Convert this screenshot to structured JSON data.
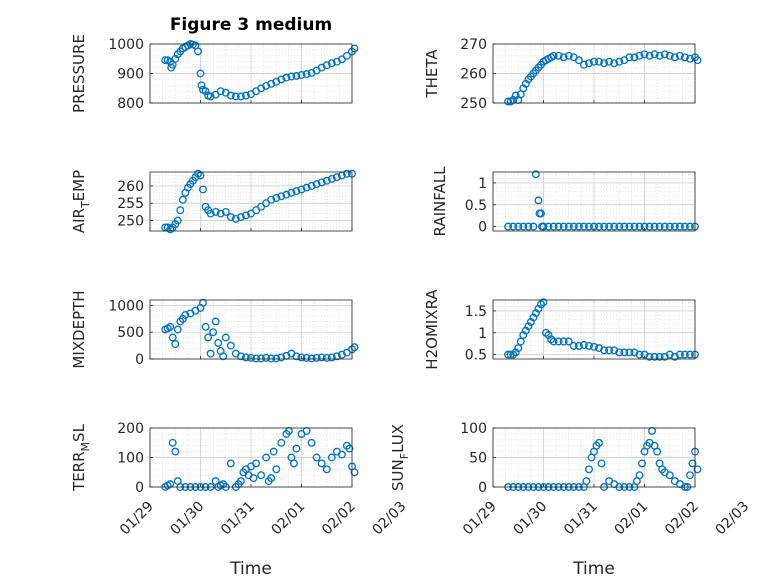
{
  "figure": {
    "title": "Figure 3 medium",
    "marker_color": "#0072BD",
    "x_tick_labels": [
      "01/29",
      "01/30",
      "01/31",
      "02/01",
      "02/02",
      "02/03"
    ],
    "x_label": "Time"
  },
  "chart_data": [
    {
      "type": "scatter",
      "ylabel": "PRESSURE",
      "ylim": [
        800,
        1000
      ],
      "yticks": [
        800,
        900,
        1000
      ],
      "xlim": [
        0,
        4
      ],
      "grid": true,
      "x": [
        0.3,
        0.35,
        0.4,
        0.42,
        0.45,
        0.5,
        0.55,
        0.6,
        0.65,
        0.7,
        0.75,
        0.8,
        0.85,
        0.9,
        0.95,
        1.0,
        1.02,
        1.05,
        1.1,
        1.15,
        1.2,
        1.3,
        1.4,
        1.5,
        1.6,
        1.7,
        1.8,
        1.9,
        2.0,
        2.1,
        2.2,
        2.3,
        2.4,
        2.5,
        2.6,
        2.7,
        2.8,
        2.9,
        3.0,
        3.1,
        3.2,
        3.3,
        3.4,
        3.5,
        3.6,
        3.7,
        3.8,
        3.9,
        4.0,
        4.05,
        4.1
      ],
      "y": [
        945,
        945,
        940,
        920,
        930,
        950,
        965,
        975,
        985,
        990,
        995,
        1000,
        998,
        995,
        975,
        900,
        860,
        845,
        840,
        825,
        822,
        828,
        840,
        835,
        825,
        822,
        822,
        825,
        830,
        840,
        850,
        858,
        865,
        872,
        880,
        886,
        890,
        892,
        895,
        898,
        902,
        910,
        920,
        928,
        935,
        940,
        948,
        960,
        975,
        985,
        1000
      ]
    },
    {
      "type": "scatter",
      "ylabel": "THETA",
      "ylim": [
        250,
        270
      ],
      "yticks": [
        250,
        260,
        270
      ],
      "xlim": [
        0,
        4
      ],
      "grid": true,
      "x": [
        0.3,
        0.35,
        0.4,
        0.45,
        0.5,
        0.55,
        0.6,
        0.65,
        0.7,
        0.75,
        0.8,
        0.85,
        0.9,
        0.95,
        1.0,
        1.05,
        1.1,
        1.15,
        1.2,
        1.3,
        1.4,
        1.5,
        1.6,
        1.7,
        1.8,
        1.9,
        2.0,
        2.1,
        2.2,
        2.3,
        2.4,
        2.5,
        2.6,
        2.7,
        2.8,
        2.9,
        3.0,
        3.1,
        3.2,
        3.3,
        3.4,
        3.5,
        3.6,
        3.7,
        3.8,
        3.9,
        4.0,
        4.05,
        4.1
      ],
      "y": [
        250.5,
        250.5,
        251,
        252.5,
        251,
        253,
        255,
        256.5,
        258,
        259,
        260,
        261,
        262,
        263,
        264,
        264.5,
        265,
        265.5,
        266,
        266,
        265.5,
        266,
        265.5,
        264.5,
        263,
        263.5,
        264,
        264,
        263.5,
        264,
        263.5,
        264,
        264.5,
        265.5,
        265.5,
        266,
        266.5,
        266,
        266.5,
        266,
        266.5,
        266,
        265.5,
        266,
        265.5,
        265,
        265.5,
        264.5,
        263.5
      ]
    },
    {
      "type": "scatter",
      "ylabel": "AIR",
      "ylabel_sub": "T",
      "ylabel_rest": "EMP",
      "ylim": [
        247,
        264
      ],
      "yticks": [
        250,
        255,
        260
      ],
      "xlim": [
        0,
        4
      ],
      "grid": true,
      "x": [
        0.3,
        0.35,
        0.4,
        0.45,
        0.5,
        0.55,
        0.6,
        0.65,
        0.7,
        0.75,
        0.8,
        0.85,
        0.9,
        0.95,
        1.0,
        1.05,
        1.1,
        1.15,
        1.2,
        1.3,
        1.4,
        1.5,
        1.6,
        1.7,
        1.8,
        1.9,
        2.0,
        2.1,
        2.2,
        2.3,
        2.4,
        2.5,
        2.6,
        2.7,
        2.8,
        2.9,
        3.0,
        3.1,
        3.2,
        3.3,
        3.4,
        3.5,
        3.6,
        3.7,
        3.8,
        3.9,
        4.0,
        4.1
      ],
      "y": [
        248,
        248,
        247.5,
        248,
        249,
        250,
        253,
        256,
        258,
        259.5,
        260.5,
        261.5,
        262.5,
        263.5,
        263,
        259,
        254,
        253,
        252,
        252.5,
        252,
        252.5,
        251,
        250.5,
        251,
        251.5,
        252,
        253,
        254,
        255,
        256,
        256.5,
        257,
        257.5,
        258,
        258.5,
        259,
        259.5,
        260,
        260.5,
        261,
        261.5,
        262,
        262.5,
        263,
        263.5,
        263.5,
        263
      ]
    },
    {
      "type": "scatter",
      "ylabel": "RAINFALL",
      "ylim": [
        -0.1,
        1.25
      ],
      "yticks": [
        0,
        0.5,
        1
      ],
      "xlim": [
        0,
        4
      ],
      "grid": true,
      "x": [
        0.3,
        0.4,
        0.5,
        0.6,
        0.7,
        0.8,
        0.85,
        0.9,
        0.92,
        0.95,
        0.97,
        1.0,
        1.1,
        1.2,
        1.3,
        1.4,
        1.5,
        1.6,
        1.7,
        1.8,
        1.9,
        2.0,
        2.1,
        2.2,
        2.3,
        2.4,
        2.5,
        2.6,
        2.7,
        2.8,
        2.9,
        3.0,
        3.1,
        3.2,
        3.3,
        3.4,
        3.5,
        3.6,
        3.7,
        3.8,
        3.9,
        4.0,
        4.1
      ],
      "y": [
        0,
        0,
        0,
        0,
        0,
        0,
        1.2,
        0.6,
        0.3,
        0.3,
        0,
        0,
        0,
        0,
        0,
        0,
        0,
        0,
        0,
        0,
        0,
        0,
        0,
        0,
        0,
        0,
        0,
        0,
        0,
        0,
        0,
        0,
        0,
        0,
        0,
        0,
        0,
        0,
        0,
        0,
        0,
        0,
        0
      ]
    },
    {
      "type": "scatter",
      "ylabel": "MIXDEPTH",
      "ylim": [
        0,
        1100
      ],
      "yticks": [
        0,
        500,
        1000
      ],
      "xlim": [
        0,
        4
      ],
      "grid": true,
      "x": [
        0.3,
        0.35,
        0.4,
        0.45,
        0.5,
        0.55,
        0.6,
        0.65,
        0.7,
        0.8,
        0.9,
        1.0,
        1.05,
        1.1,
        1.15,
        1.2,
        1.25,
        1.3,
        1.35,
        1.4,
        1.45,
        1.5,
        1.6,
        1.7,
        1.8,
        1.9,
        2.0,
        2.1,
        2.2,
        2.3,
        2.4,
        2.5,
        2.6,
        2.7,
        2.8,
        2.9,
        3.0,
        3.1,
        3.2,
        3.3,
        3.4,
        3.5,
        3.6,
        3.7,
        3.8,
        3.9,
        4.0,
        4.05,
        4.1
      ],
      "y": [
        550,
        570,
        600,
        400,
        280,
        550,
        700,
        750,
        820,
        850,
        900,
        950,
        1050,
        600,
        400,
        100,
        500,
        700,
        300,
        150,
        50,
        400,
        250,
        100,
        50,
        30,
        20,
        10,
        10,
        20,
        10,
        10,
        30,
        60,
        100,
        50,
        30,
        20,
        10,
        20,
        30,
        20,
        30,
        50,
        80,
        120,
        180,
        220,
        250
      ]
    },
    {
      "type": "scatter",
      "ylabel": "H2OMIXRA",
      "ylim": [
        0.4,
        1.75
      ],
      "yticks": [
        0.5,
        1,
        1.5
      ],
      "xlim": [
        0,
        4
      ],
      "grid": true,
      "x": [
        0.3,
        0.35,
        0.4,
        0.45,
        0.5,
        0.55,
        0.6,
        0.65,
        0.7,
        0.75,
        0.8,
        0.85,
        0.9,
        0.95,
        1.0,
        1.05,
        1.1,
        1.15,
        1.2,
        1.3,
        1.4,
        1.5,
        1.6,
        1.7,
        1.8,
        1.9,
        2.0,
        2.1,
        2.2,
        2.3,
        2.4,
        2.5,
        2.6,
        2.7,
        2.8,
        2.9,
        3.0,
        3.1,
        3.2,
        3.3,
        3.4,
        3.5,
        3.6,
        3.7,
        3.8,
        3.9,
        4.0,
        4.1
      ],
      "y": [
        0.5,
        0.5,
        0.5,
        0.55,
        0.65,
        0.8,
        0.95,
        1.05,
        1.15,
        1.25,
        1.35,
        1.45,
        1.55,
        1.65,
        1.7,
        1.0,
        0.95,
        0.85,
        0.8,
        0.8,
        0.8,
        0.8,
        0.7,
        0.7,
        0.72,
        0.7,
        0.68,
        0.65,
        0.6,
        0.6,
        0.6,
        0.55,
        0.55,
        0.55,
        0.55,
        0.5,
        0.5,
        0.45,
        0.45,
        0.45,
        0.45,
        0.5,
        0.45,
        0.5,
        0.5,
        0.5,
        0.5,
        0.6
      ]
    },
    {
      "type": "scatter",
      "ylabel": "TERR",
      "ylabel_sub": "M",
      "ylabel_rest": "SL",
      "ylim": [
        0,
        200
      ],
      "yticks": [
        0,
        100,
        200
      ],
      "xlim": [
        0,
        4
      ],
      "grid": true,
      "x": [
        0.3,
        0.35,
        0.4,
        0.45,
        0.5,
        0.55,
        0.6,
        0.7,
        0.8,
        0.9,
        1.0,
        1.1,
        1.2,
        1.3,
        1.35,
        1.4,
        1.45,
        1.5,
        1.6,
        1.7,
        1.75,
        1.8,
        1.85,
        1.9,
        1.95,
        2.0,
        2.05,
        2.1,
        2.2,
        2.3,
        2.35,
        2.4,
        2.45,
        2.5,
        2.6,
        2.7,
        2.75,
        2.8,
        2.85,
        2.9,
        3.0,
        3.1,
        3.2,
        3.3,
        3.4,
        3.5,
        3.6,
        3.7,
        3.8,
        3.9,
        3.95,
        4.0,
        4.05,
        4.1
      ],
      "y": [
        0,
        5,
        10,
        150,
        120,
        20,
        0,
        0,
        0,
        0,
        0,
        0,
        0,
        20,
        0,
        5,
        10,
        0,
        80,
        0,
        10,
        20,
        50,
        60,
        40,
        70,
        30,
        80,
        40,
        100,
        20,
        30,
        120,
        60,
        150,
        180,
        190,
        100,
        80,
        130,
        180,
        190,
        150,
        100,
        80,
        60,
        100,
        120,
        110,
        140,
        130,
        70,
        50,
        20
      ]
    },
    {
      "type": "scatter",
      "ylabel": "SUN",
      "ylabel_sub": "F",
      "ylabel_rest": "LUX",
      "ylim": [
        0,
        100
      ],
      "yticks": [
        0,
        50,
        100
      ],
      "xlim": [
        0,
        4
      ],
      "grid": true,
      "x": [
        0.3,
        0.4,
        0.5,
        0.6,
        0.7,
        0.8,
        0.9,
        1.0,
        1.1,
        1.2,
        1.3,
        1.4,
        1.5,
        1.6,
        1.7,
        1.8,
        1.85,
        1.9,
        1.95,
        2.0,
        2.05,
        2.1,
        2.15,
        2.2,
        2.3,
        2.4,
        2.5,
        2.6,
        2.7,
        2.8,
        2.85,
        2.9,
        2.95,
        3.0,
        3.05,
        3.1,
        3.15,
        3.2,
        3.25,
        3.3,
        3.35,
        3.4,
        3.5,
        3.6,
        3.7,
        3.8,
        3.85,
        3.9,
        3.95,
        4.0,
        4.05,
        4.1
      ],
      "y": [
        0,
        0,
        0,
        0,
        0,
        0,
        0,
        0,
        0,
        0,
        0,
        0,
        0,
        0,
        0,
        0,
        10,
        30,
        50,
        60,
        70,
        75,
        40,
        0,
        10,
        5,
        0,
        0,
        0,
        0,
        10,
        20,
        40,
        60,
        70,
        75,
        95,
        70,
        60,
        40,
        30,
        25,
        20,
        10,
        5,
        0,
        0,
        20,
        40,
        60,
        30,
        5
      ]
    }
  ]
}
